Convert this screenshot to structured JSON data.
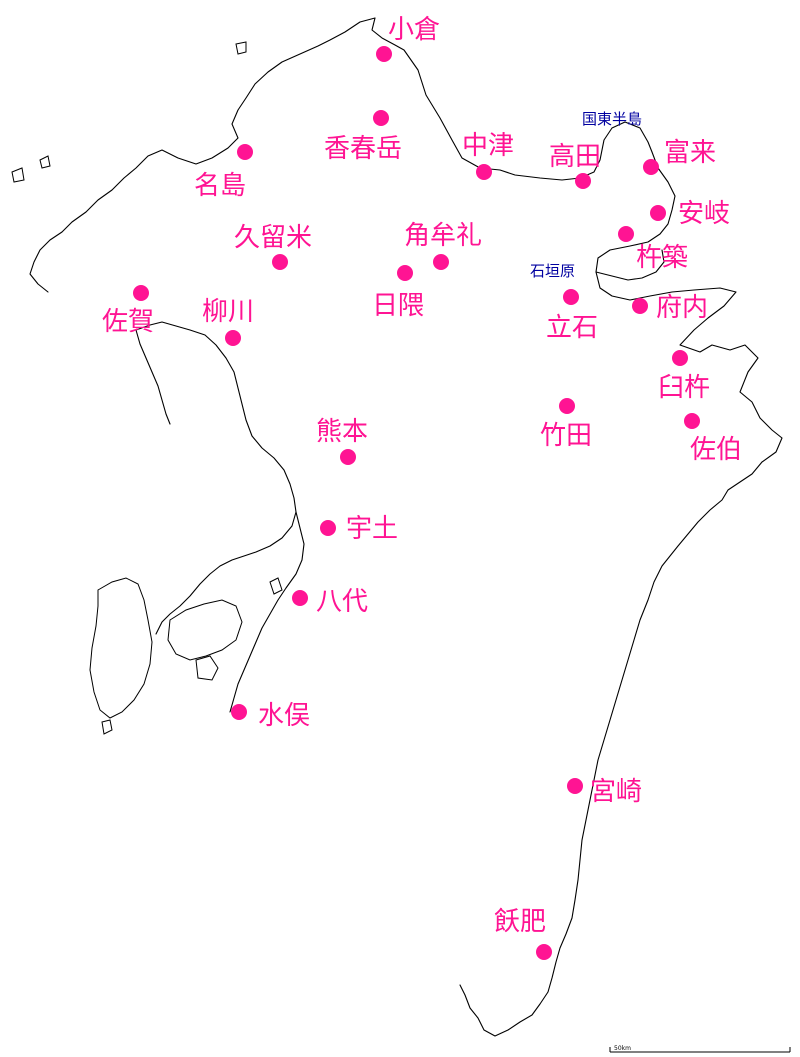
{
  "colors": {
    "city": "#ff1493",
    "region": "#0000a0",
    "coast": "#000000",
    "background": "#ffffff"
  },
  "cities": [
    {
      "id": "kokura",
      "name": "小倉"
    },
    {
      "id": "kawaradake",
      "name": "香春岳"
    },
    {
      "id": "najima",
      "name": "名島"
    },
    {
      "id": "nakatsu",
      "name": "中津"
    },
    {
      "id": "takada",
      "name": "高田"
    },
    {
      "id": "tomiku",
      "name": "富来"
    },
    {
      "id": "aki",
      "name": "安岐"
    },
    {
      "id": "kitsuki",
      "name": "杵築"
    },
    {
      "id": "kurume",
      "name": "久留米"
    },
    {
      "id": "tsunomure",
      "name": "角牟礼"
    },
    {
      "id": "hita",
      "name": "日隈"
    },
    {
      "id": "saga",
      "name": "佐賀"
    },
    {
      "id": "yanagawa",
      "name": "柳川"
    },
    {
      "id": "tateishi",
      "name": "立石"
    },
    {
      "id": "funai",
      "name": "府内"
    },
    {
      "id": "usuki",
      "name": "臼杵"
    },
    {
      "id": "kumamoto",
      "name": "熊本"
    },
    {
      "id": "taketa",
      "name": "竹田"
    },
    {
      "id": "saiki",
      "name": "佐伯"
    },
    {
      "id": "uto",
      "name": "宇土"
    },
    {
      "id": "yatsushiro",
      "name": "八代"
    },
    {
      "id": "minamata",
      "name": "水俣"
    },
    {
      "id": "miyazaki",
      "name": "宮崎"
    },
    {
      "id": "obi",
      "name": "飫肥"
    }
  ],
  "regions": [
    {
      "id": "kunisaki",
      "name": "国東半島"
    },
    {
      "id": "ishigakibaru",
      "name": "石垣原"
    }
  ],
  "scale": {
    "label": "50km"
  }
}
